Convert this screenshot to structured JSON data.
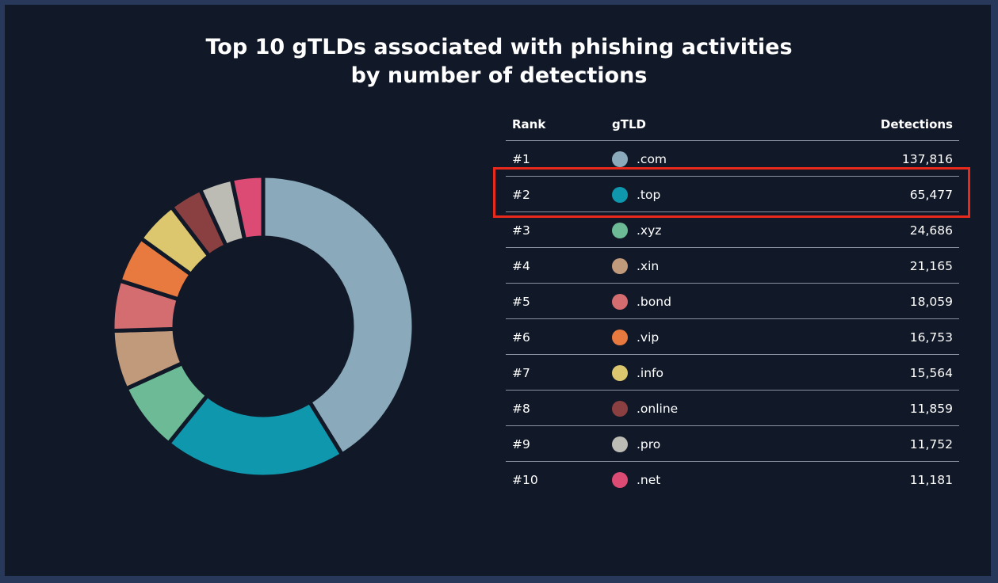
{
  "chart_data": {
    "type": "pie",
    "title": "Top 10 gTLDs associated with phishing activities by number of detections",
    "title_lines": [
      "Top 10 gTLDs associated with phishing activities",
      "by number of detections"
    ],
    "style": "donut",
    "categories": [
      ".com",
      ".top",
      ".xyz",
      ".xin",
      ".bond",
      ".vip",
      ".info",
      ".online",
      ".pro",
      ".net"
    ],
    "values": [
      137816,
      65477,
      24686,
      21165,
      18059,
      16753,
      15564,
      11859,
      11752,
      11181
    ],
    "colors": [
      "#8aaabb",
      "#0e97ad",
      "#6dba96",
      "#c19a7c",
      "#d46d70",
      "#e87a40",
      "#dcc66e",
      "#8a4040",
      "#bcbcb4",
      "#db4b74"
    ],
    "highlighted_category": ".top"
  },
  "table": {
    "headers": {
      "rank": "Rank",
      "gtld": "gTLD",
      "detections": "Detections"
    },
    "rows": [
      {
        "rank": "#1",
        "gtld": ".com",
        "detections": "137,816",
        "color": "#8aaabb"
      },
      {
        "rank": "#2",
        "gtld": ".top",
        "detections": "65,477",
        "color": "#0e97ad"
      },
      {
        "rank": "#3",
        "gtld": ".xyz",
        "detections": "24,686",
        "color": "#6dba96"
      },
      {
        "rank": "#4",
        "gtld": ".xin",
        "detections": "21,165",
        "color": "#c19a7c"
      },
      {
        "rank": "#5",
        "gtld": ".bond",
        "detections": "18,059",
        "color": "#d46d70"
      },
      {
        "rank": "#6",
        "gtld": ".vip",
        "detections": "16,753",
        "color": "#e87a40"
      },
      {
        "rank": "#7",
        "gtld": ".info",
        "detections": "15,564",
        "color": "#dcc66e"
      },
      {
        "rank": "#8",
        "gtld": ".online",
        "detections": "11,859",
        "color": "#8a4040"
      },
      {
        "rank": "#9",
        "gtld": ".pro",
        "detections": "11,752",
        "color": "#bcbcb4"
      },
      {
        "rank": "#10",
        "gtld": ".net",
        "detections": "11,181",
        "color": "#db4b74"
      }
    ]
  }
}
